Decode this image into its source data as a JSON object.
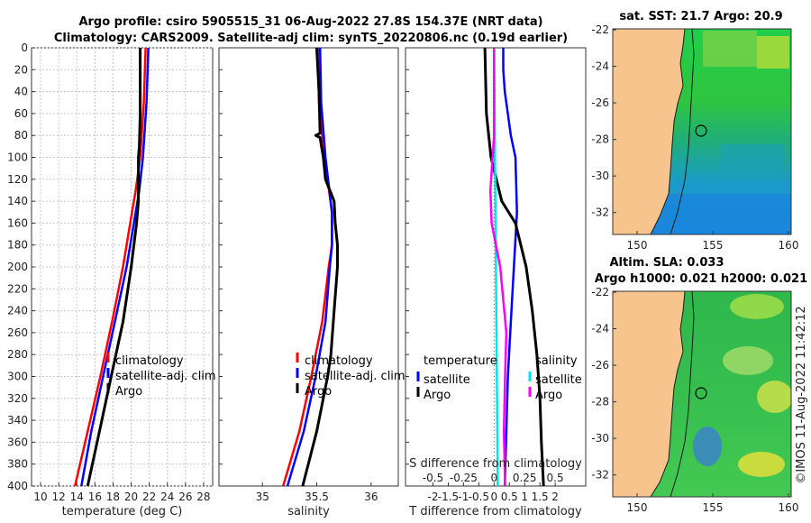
{
  "title": {
    "line1": "Argo profile: csiro 5905515_31 06-Aug-2022 27.8S 154.37E (NRT data)",
    "line2": "Climatology: CARS2009. Satellite-adj clim: synTS_20220806.nc (0.19d earlier)"
  },
  "colors": {
    "climatology": "#ff0000",
    "satellite": "#0000ff",
    "argo": "#000000",
    "sat_salinity": "#00e5ee",
    "argo_salinity": "#ff00ff",
    "land": "#f8c48e"
  },
  "chart_data": [
    {
      "type": "line",
      "name": "temperature-panel",
      "xlabel": "temperature (deg C)",
      "ylabel": "depth",
      "xlim": [
        9,
        29
      ],
      "ylim": [
        0,
        400
      ],
      "xticks": [
        "10",
        "12",
        "14",
        "16",
        "18",
        "20",
        "22",
        "24",
        "26",
        "28"
      ],
      "yticks": [
        "0",
        "20",
        "40",
        "60",
        "80",
        "100",
        "120",
        "140",
        "160",
        "180",
        "200",
        "220",
        "240",
        "260",
        "280",
        "300",
        "320",
        "340",
        "360",
        "380",
        "400"
      ],
      "grid": true,
      "legend": [
        "climatology",
        "satellite-adj. clim",
        "Argo"
      ],
      "series": [
        {
          "name": "climatology",
          "depth": [
            0,
            50,
            100,
            130,
            160,
            200,
            250,
            300,
            350,
            400
          ],
          "values": [
            21.6,
            21.4,
            21.0,
            20.5,
            19.9,
            19.1,
            17.9,
            16.6,
            15.2,
            13.8
          ]
        },
        {
          "name": "satellite-adj. clim",
          "depth": [
            0,
            50,
            100,
            130,
            160,
            200,
            250,
            300,
            350,
            400
          ],
          "values": [
            21.9,
            21.7,
            21.3,
            20.9,
            20.3,
            19.5,
            18.2,
            16.9,
            15.6,
            14.5
          ]
        },
        {
          "name": "Argo",
          "depth": [
            0,
            30,
            60,
            90,
            100,
            120,
            140,
            160,
            200,
            250,
            300,
            350,
            400
          ],
          "values": [
            21.0,
            21.0,
            21.0,
            20.9,
            20.8,
            20.8,
            20.8,
            20.6,
            20.0,
            19.1,
            17.8,
            16.5,
            15.2
          ]
        }
      ]
    },
    {
      "type": "line",
      "name": "salinity-panel",
      "xlabel": "salinity",
      "xlim": [
        34.6,
        36.25
      ],
      "ylim": [
        0,
        400
      ],
      "xticks": [
        "35",
        "35.5",
        "36"
      ],
      "legend": [
        "climatology",
        "satellite-adj. clim",
        "Argo"
      ],
      "series": [
        {
          "name": "climatology",
          "depth": [
            0,
            50,
            100,
            150,
            180,
            200,
            250,
            300,
            350,
            400
          ],
          "values": [
            35.51,
            35.52,
            35.57,
            35.64,
            35.64,
            35.61,
            35.55,
            35.45,
            35.34,
            35.19
          ]
        },
        {
          "name": "satellite-adj. clim",
          "depth": [
            0,
            50,
            100,
            150,
            180,
            200,
            250,
            300,
            350,
            400
          ],
          "values": [
            35.53,
            35.54,
            35.58,
            35.64,
            35.64,
            35.62,
            35.58,
            35.49,
            35.38,
            35.23
          ]
        },
        {
          "name": "Argo",
          "depth": [
            0,
            40,
            78,
            80,
            82,
            100,
            120,
            140,
            160,
            180,
            200,
            240,
            280,
            300,
            350,
            400
          ],
          "values": [
            35.5,
            35.52,
            35.53,
            35.49,
            35.53,
            35.56,
            35.58,
            35.66,
            35.67,
            35.69,
            35.69,
            35.66,
            35.63,
            35.6,
            35.5,
            35.37
          ]
        }
      ]
    },
    {
      "type": "line",
      "name": "difference-panel",
      "xlabel": "T difference from climatology",
      "xlabel_top": "S difference from climatology",
      "xlim": [
        -2.9,
        3.0
      ],
      "ylim": [
        0,
        400
      ],
      "xticks": [
        "-2",
        "-1.5",
        "-1",
        "-0.5",
        "0",
        "0.5",
        "1",
        "1.5",
        "2"
      ],
      "xticks_top": [
        "-0.5",
        "-0.25",
        "0",
        "0.25",
        "0.5"
      ],
      "legend_left_title": "temperature",
      "legend_right_title": "salinity",
      "legend": [
        "satellite",
        "Argo",
        "satellite",
        "Argo"
      ],
      "series": [
        {
          "name": "temperature satellite",
          "depth": [
            0,
            20,
            40,
            80,
            100,
            150,
            200,
            250,
            300,
            350,
            400
          ],
          "values": [
            0.3,
            0.3,
            0.35,
            0.55,
            0.7,
            0.75,
            0.65,
            0.55,
            0.45,
            0.4,
            0.35
          ]
        },
        {
          "name": "temperature Argo",
          "depth": [
            0,
            60,
            100,
            140,
            160,
            200,
            240,
            280,
            320,
            360,
            400
          ],
          "values": [
            -0.3,
            -0.25,
            -0.1,
            0.25,
            0.7,
            1.05,
            1.25,
            1.4,
            1.5,
            1.55,
            1.62
          ]
        },
        {
          "name": "salinity satellite",
          "depth": [
            0,
            400
          ],
          "values": [
            0.0,
            0.03
          ]
        },
        {
          "name": "salinity Argo",
          "depth": [
            0,
            80,
            130,
            160,
            200,
            260,
            300,
            350,
            400
          ],
          "values": [
            0.0,
            0.0,
            -0.03,
            -0.02,
            0.05,
            0.1,
            0.09,
            0.08,
            0.09
          ]
        }
      ]
    }
  ],
  "maps": {
    "sst": {
      "title": "sat. SST: 21.7 Argo: 20.9",
      "yticks": [
        "-22",
        "-24",
        "-26",
        "-28",
        "-30",
        "-32"
      ],
      "xticks": [
        "150",
        "155",
        "160"
      ]
    },
    "sla": {
      "title1": "Altim. SLA: 0.033",
      "title2": "Argo h1000: 0.021 h2000: 0.021",
      "yticks": [
        "-22",
        "-24",
        "-26",
        "-28",
        "-30",
        "-32"
      ],
      "xticks": [
        "150",
        "155",
        "160"
      ]
    }
  },
  "credit": "©IMOS 11-Aug-2022 11:42:12"
}
